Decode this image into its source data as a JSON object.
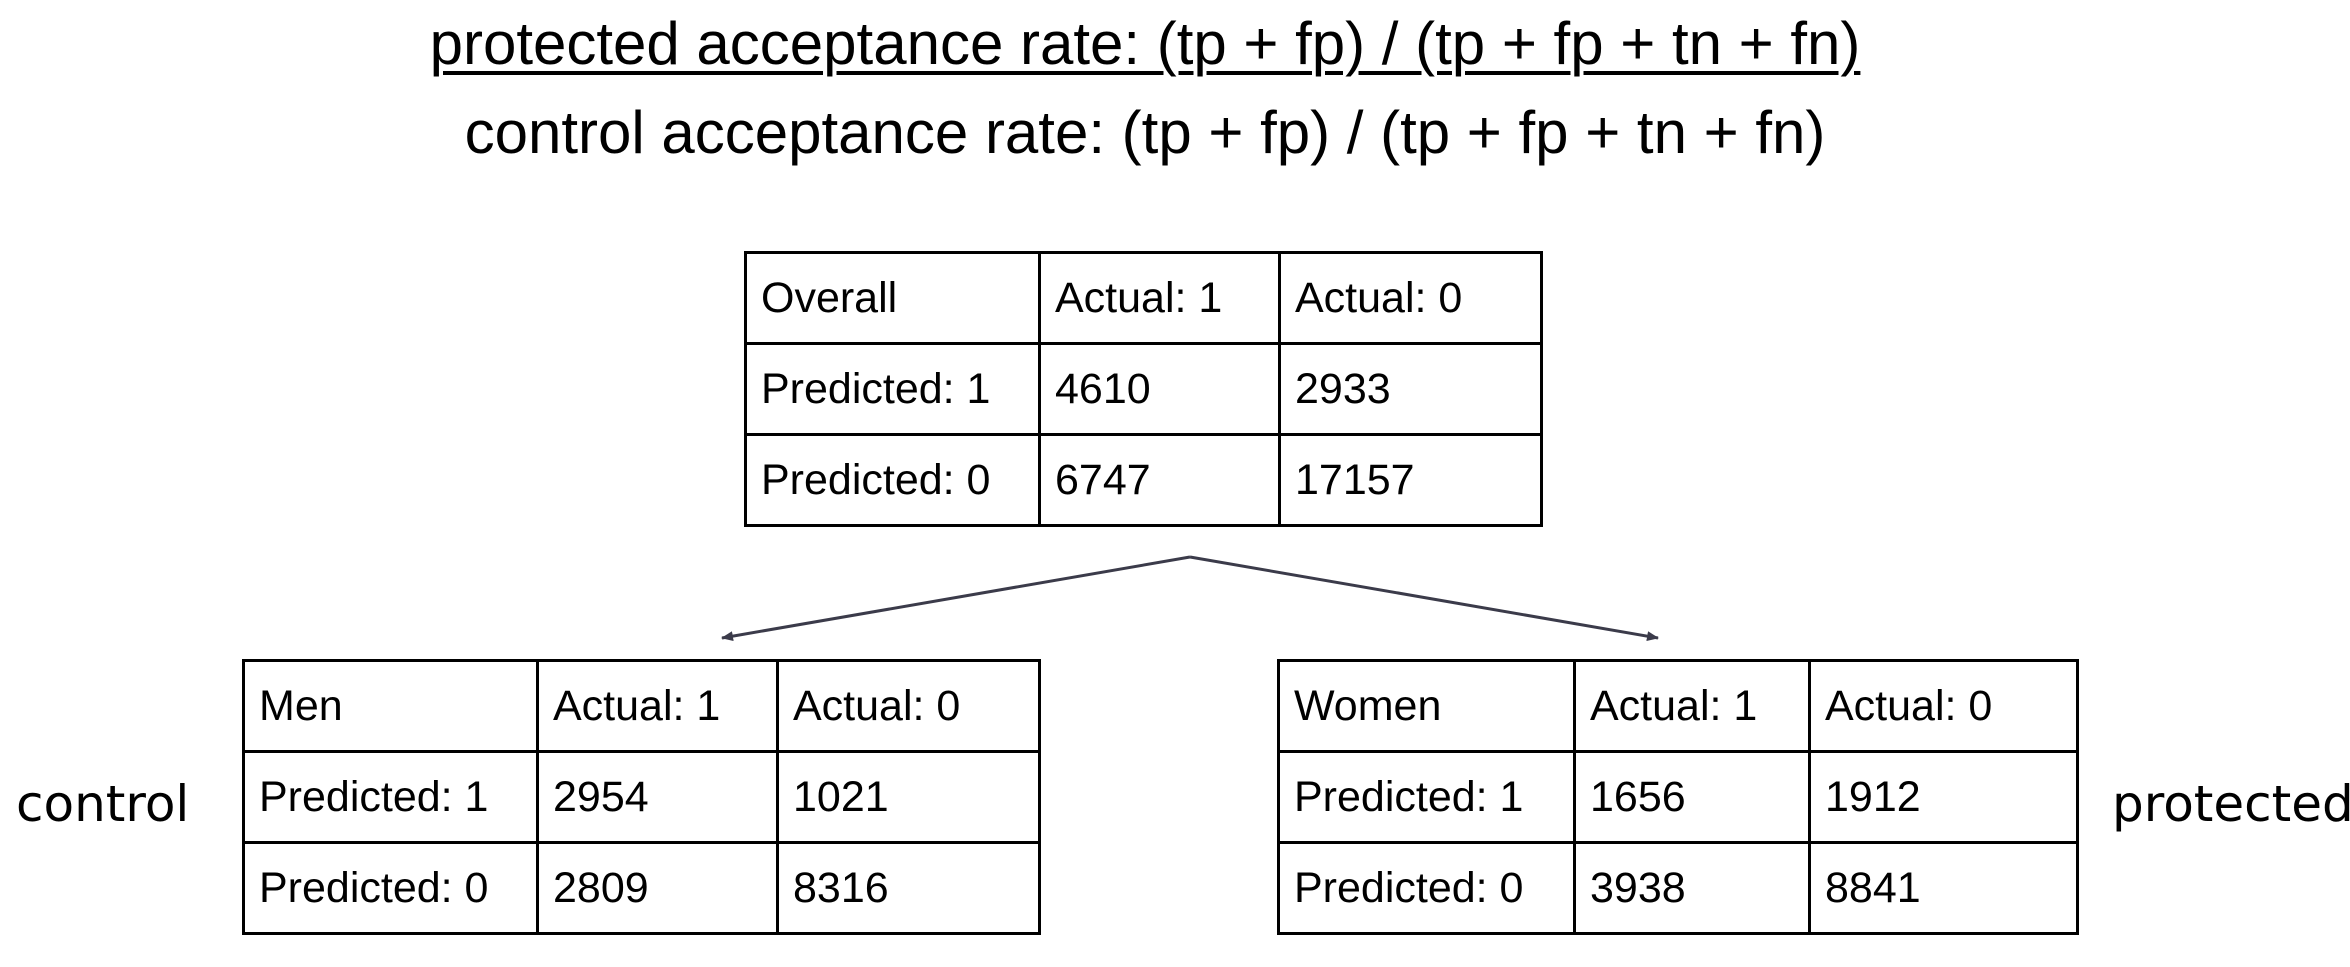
{
  "formulas": {
    "protected": "protected acceptance rate: (tp + fp) / (tp + fp + tn + fn)",
    "control": "control acceptance rate: (tp + fp) / (tp + fp + tn + fn)"
  },
  "overall": {
    "header": [
      "Overall",
      "Actual: 1",
      "Actual: 0"
    ],
    "rows": [
      [
        "Predicted: 1",
        "4610",
        "2933"
      ],
      [
        "Predicted: 0",
        "6747",
        "17157"
      ]
    ]
  },
  "men": {
    "side_label": "control",
    "header": [
      "Men",
      "Actual: 1",
      "Actual: 0"
    ],
    "rows": [
      [
        "Predicted: 1",
        "2954",
        "1021"
      ],
      [
        "Predicted: 0",
        "2809",
        "8316"
      ]
    ]
  },
  "women": {
    "side_label": "protected",
    "header": [
      "Women",
      "Actual: 1",
      "Actual: 0"
    ],
    "rows": [
      [
        "Predicted: 1",
        "1656",
        "1912"
      ],
      [
        "Predicted: 0",
        "3938",
        "8841"
      ]
    ]
  },
  "colors": {
    "arrow": "#3b3b4a"
  }
}
